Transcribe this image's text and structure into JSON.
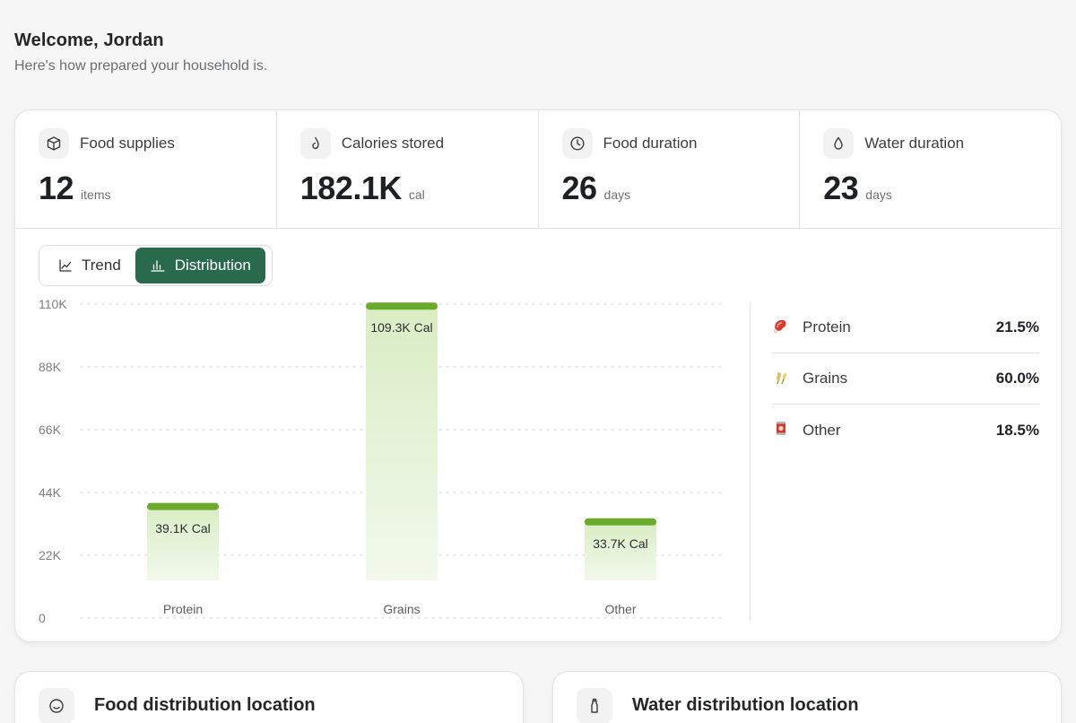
{
  "greeting": {
    "title": "Welcome, Jordan",
    "subtitle": "Here's how prepared your household is."
  },
  "stats": [
    {
      "label": "Food supplies",
      "value": "12",
      "unit": "items",
      "icon": "box-icon"
    },
    {
      "label": "Calories stored",
      "value": "182.1K",
      "unit": "cal",
      "icon": "flame-icon"
    },
    {
      "label": "Food duration",
      "value": "26",
      "unit": "days",
      "icon": "clock-icon"
    },
    {
      "label": "Water duration",
      "value": "23",
      "unit": "days",
      "icon": "droplet-icon"
    }
  ],
  "toggle": {
    "trend_label": "Trend",
    "distribution_label": "Distribution",
    "active": "Distribution"
  },
  "chart_data": {
    "type": "bar",
    "categories": [
      "Protein",
      "Grains",
      "Other"
    ],
    "values": [
      39100,
      109300,
      33700
    ],
    "data_labels": [
      "39.1K Cal",
      "109.3K Cal",
      "33.7K Cal"
    ],
    "yticks": [
      "110K",
      "88K",
      "66K",
      "44K",
      "22K",
      "0"
    ],
    "ylim": [
      0,
      110000
    ],
    "grid": true,
    "colors": {
      "bar_top": "#6aaa2c",
      "bar_fill_top": "#d9edc4",
      "bar_fill_bottom": "#f2f9ec"
    }
  },
  "legend": [
    {
      "label": "Protein",
      "pct": "21.5%",
      "icon": "meat-icon"
    },
    {
      "label": "Grains",
      "pct": "60.0%",
      "icon": "wheat-icon"
    },
    {
      "label": "Other",
      "pct": "18.5%",
      "icon": "can-icon"
    }
  ],
  "bottom_cards": [
    {
      "title": "Food distribution location",
      "icon": "smile-icon"
    },
    {
      "title": "Water distribution location",
      "icon": "bottle-icon"
    }
  ],
  "colors": {
    "accent": "#2a6a4c",
    "bar": "#6aaa2c"
  }
}
